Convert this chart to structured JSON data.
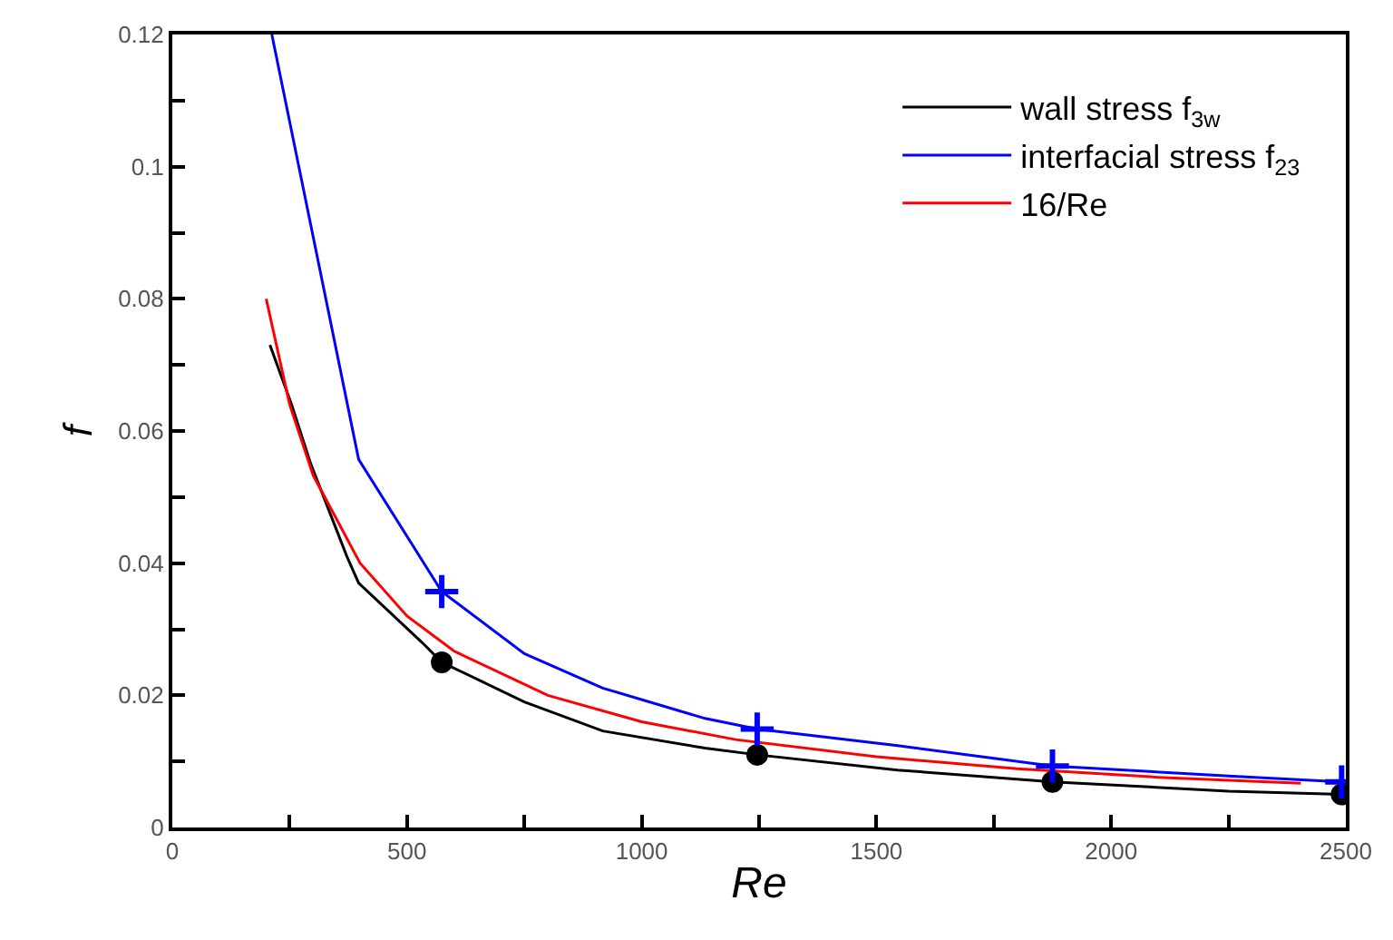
{
  "chart_data": {
    "type": "line",
    "xlabel": "Re",
    "ylabel": "f",
    "xlim": [
      0,
      2500
    ],
    "ylim": [
      0,
      0.12
    ],
    "xticks": [
      0,
      {
        "value": 250,
        "label": null
      },
      500,
      {
        "value": 750,
        "label": null
      },
      1000,
      {
        "value": 1250,
        "label": null
      },
      1500,
      {
        "value": 1750,
        "label": null
      },
      2000,
      {
        "value": 2250,
        "label": null
      },
      2500
    ],
    "yticks": [
      0,
      {
        "value": 0.01,
        "label": null
      },
      0.02,
      {
        "value": 0.03,
        "label": null
      },
      0.04,
      {
        "value": 0.05,
        "label": null
      },
      0.06,
      {
        "value": 0.07,
        "label": null
      },
      0.08,
      {
        "value": 0.09,
        "label": null
      },
      0.1,
      {
        "value": 0.11,
        "label": null
      },
      0.12
    ],
    "legend": "top right",
    "marker": "none",
    "line_style": "solid",
    "series": [
      {
        "name": "wall stress f$_{3w}$",
        "color": "#000000",
        "x": [
          208,
          254,
          295,
          372,
          397,
          532,
          574,
          750,
          917,
          1135,
          1246,
          1545,
          1875,
          2250,
          2491
        ],
        "values": [
          0.073,
          0.064,
          0.055,
          0.041,
          0.037,
          0.028,
          0.025,
          0.019,
          0.0146,
          0.012,
          0.011,
          0.0087,
          0.0069,
          0.0055,
          0.005
        ]
      },
      {
        "name": "interfacial stress f$_{23}$",
        "color": "#0000ff",
        "x": [
          212,
          397,
          574,
          750,
          917,
          1135,
          1246,
          1545,
          1875,
          2250,
          2491
        ],
        "values": [
          0.12,
          0.0557,
          0.0357,
          0.0263,
          0.0211,
          0.0165,
          0.0149,
          0.0124,
          0.0093,
          0.0078,
          0.0069
        ]
      },
      {
        "name": "16/Re",
        "color": "#ff0000",
        "x": [
          200,
          250,
          300,
          400,
          500,
          600,
          800,
          1000,
          1200,
          1500,
          1800,
          2100,
          2404
        ],
        "values": [
          0.08,
          0.064,
          0.0533,
          0.04,
          0.032,
          0.0267,
          0.02,
          0.016,
          0.0133,
          0.0107,
          0.0089,
          0.0076,
          0.0067
        ]
      },
      {
        "type": "scatter",
        "marker": "circle",
        "color": "#000000",
        "x": [
          574,
          1246,
          1875,
          2491
        ],
        "values": [
          0.025,
          0.011,
          0.0069,
          0.005
        ]
      },
      {
        "type": "scatter",
        "marker": "cross",
        "color": "#0000ff",
        "x": [
          574,
          1246,
          1875,
          2491
        ],
        "values": [
          0.0357,
          0.0149,
          0.0093,
          0.0069
        ]
      }
    ]
  }
}
